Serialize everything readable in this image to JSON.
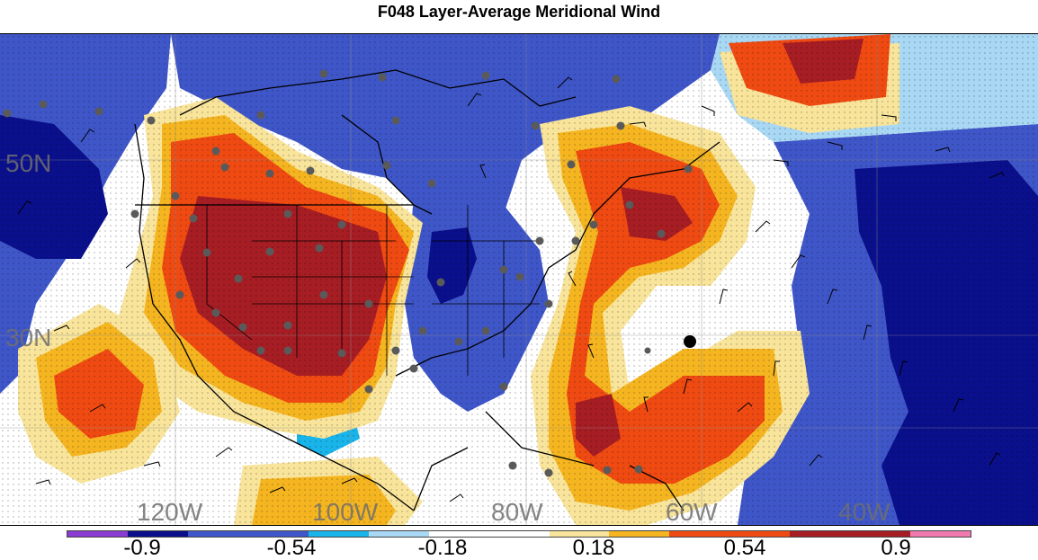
{
  "title": "F048 Layer-Average Meridional Wind",
  "colors": {
    "neg_09": "#8a3bd1",
    "neg_dark": "#0a0f8c",
    "neg_mid": "#3f56c8",
    "neg_light": "#19b4ea",
    "neg_pale": "#a8d8f4",
    "zero": "#ffffff",
    "pos_pale": "#f8e49a",
    "pos_light": "#f5b520",
    "pos_mid": "#ef4a12",
    "pos_dark": "#a61d24",
    "pos_09": "#f07ab0",
    "coast": "#000000",
    "station": "#5a5a5a"
  },
  "map": {
    "lat_labels": [
      "50N",
      "30N"
    ],
    "lon_labels": [
      "120W",
      "100W",
      "80W",
      "60W",
      "40W"
    ]
  },
  "colorbar": {
    "labels": [
      "-0.9",
      "-0.54",
      "-0.18",
      "0.18",
      "0.54",
      "0.9"
    ]
  }
}
